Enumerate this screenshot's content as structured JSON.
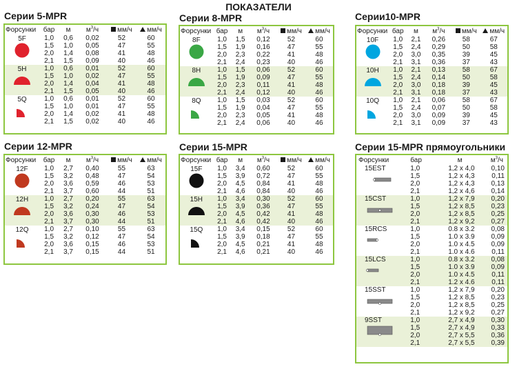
{
  "main_title": "ПОКАЗАТЕЛИ",
  "headers": {
    "nozzles": "Форсунки",
    "bar": "бар",
    "m": "м",
    "flow": "м",
    "flow_sup": "3",
    "flow_tail": "/ч",
    "mm_sq": "мм/ч",
    "mm_tri": "мм/ч"
  },
  "colors": {
    "border": "#8dc63f",
    "shade": "#eaf1d8"
  },
  "series": [
    {
      "id": "5mpr",
      "title": "Серии 5-MPR",
      "color": "#e0222d",
      "groups": [
        {
          "nozzle": "5F",
          "shape": "full",
          "rows": [
            [
              "1,0",
              "0,6",
              "0,02",
              "52",
              "60"
            ],
            [
              "1,5",
              "1,0",
              "0,05",
              "47",
              "55"
            ],
            [
              "2,0",
              "1,4",
              "0,08",
              "41",
              "48"
            ],
            [
              "2,1",
              "1,5",
              "0,09",
              "40",
              "46"
            ]
          ]
        },
        {
          "nozzle": "5H",
          "shape": "half",
          "rows": [
            [
              "1,0",
              "0,6",
              "0,01",
              "52",
              "60"
            ],
            [
              "1,5",
              "1,0",
              "0,02",
              "47",
              "55"
            ],
            [
              "2,0",
              "1,4",
              "0,04",
              "41",
              "48"
            ],
            [
              "2,1",
              "1,5",
              "0,05",
              "40",
              "46"
            ]
          ]
        },
        {
          "nozzle": "5Q",
          "shape": "quarter",
          "rows": [
            [
              "1,0",
              "0,6",
              "0,01",
              "52",
              "60"
            ],
            [
              "1,5",
              "1,0",
              "0,01",
              "47",
              "55"
            ],
            [
              "2,0",
              "1,4",
              "0,02",
              "41",
              "48"
            ],
            [
              "2,1",
              "1,5",
              "0,02",
              "40",
              "46"
            ]
          ]
        }
      ]
    },
    {
      "id": "8mpr",
      "title": "Серии 8-MPR",
      "color": "#3aa745",
      "groups": [
        {
          "nozzle": "8F",
          "shape": "full",
          "rows": [
            [
              "1,0",
              "1,5",
              "0,12",
              "52",
              "60"
            ],
            [
              "1,5",
              "1,9",
              "0,16",
              "47",
              "55"
            ],
            [
              "2,0",
              "2,3",
              "0,22",
              "41",
              "48"
            ],
            [
              "2,1",
              "2,4",
              "0,23",
              "40",
              "46"
            ]
          ]
        },
        {
          "nozzle": "8H",
          "shape": "half",
          "rows": [
            [
              "1,0",
              "1,5",
              "0,06",
              "52",
              "60"
            ],
            [
              "1,5",
              "1,9",
              "0,09",
              "47",
              "55"
            ],
            [
              "2,0",
              "2,3",
              "0,11",
              "41",
              "48"
            ],
            [
              "2,1",
              "2,4",
              "0,12",
              "40",
              "46"
            ]
          ]
        },
        {
          "nozzle": "8Q",
          "shape": "quarter",
          "rows": [
            [
              "1,0",
              "1,5",
              "0,03",
              "52",
              "60"
            ],
            [
              "1,5",
              "1,9",
              "0,04",
              "47",
              "55"
            ],
            [
              "2,0",
              "2,3",
              "0,05",
              "41",
              "48"
            ],
            [
              "2,1",
              "2,4",
              "0,06",
              "40",
              "46"
            ]
          ]
        }
      ]
    },
    {
      "id": "10mpr",
      "title": "Серии10-MPR",
      "color": "#00a6e0",
      "groups": [
        {
          "nozzle": "10F",
          "shape": "full",
          "rows": [
            [
              "1,0",
              "2,1",
              "0,26",
              "58",
              "67"
            ],
            [
              "1,5",
              "2,4",
              "0,29",
              "50",
              "58"
            ],
            [
              "2,0",
              "3,0",
              "0,35",
              "39",
              "45"
            ],
            [
              "2,1",
              "3,1",
              "0,36",
              "37",
              "43"
            ]
          ]
        },
        {
          "nozzle": "10H",
          "shape": "half",
          "rows": [
            [
              "1,0",
              "2,1",
              "0,13",
              "58",
              "67"
            ],
            [
              "1,5",
              "2,4",
              "0,14",
              "50",
              "58"
            ],
            [
              "2,0",
              "3,0",
              "0,18",
              "39",
              "45"
            ],
            [
              "2,1",
              "3,1",
              "0,18",
              "37",
              "43"
            ]
          ]
        },
        {
          "nozzle": "10Q",
          "shape": "quarter",
          "rows": [
            [
              "1,0",
              "2,1",
              "0,06",
              "58",
              "67"
            ],
            [
              "1,5",
              "2,4",
              "0,07",
              "50",
              "58"
            ],
            [
              "2,0",
              "3,0",
              "0,09",
              "39",
              "45"
            ],
            [
              "2,1",
              "3,1",
              "0,09",
              "37",
              "43"
            ]
          ]
        }
      ]
    },
    {
      "id": "12mpr",
      "title": "Серии 12-MPR",
      "color": "#c0391f",
      "groups": [
        {
          "nozzle": "12F",
          "shape": "full",
          "rows": [
            [
              "1,0",
              "2,7",
              "0,40",
              "55",
              "63"
            ],
            [
              "1,5",
              "3,2",
              "0,48",
              "47",
              "54"
            ],
            [
              "2,0",
              "3,6",
              "0,59",
              "46",
              "53"
            ],
            [
              "2,1",
              "3,7",
              "0,60",
              "44",
              "51"
            ]
          ]
        },
        {
          "nozzle": "12H",
          "shape": "half",
          "rows": [
            [
              "1,0",
              "2,7",
              "0,20",
              "55",
              "63"
            ],
            [
              "1,5",
              "3,2",
              "0,24",
              "47",
              "54"
            ],
            [
              "2,0",
              "3,6",
              "0,30",
              "46",
              "53"
            ],
            [
              "2,1",
              "3,7",
              "0,30",
              "44",
              "51"
            ]
          ]
        },
        {
          "nozzle": "12Q",
          "shape": "quarter",
          "rows": [
            [
              "1,0",
              "2,7",
              "0,10",
              "55",
              "63"
            ],
            [
              "1,5",
              "3,2",
              "0,12",
              "47",
              "54"
            ],
            [
              "2,0",
              "3,6",
              "0,15",
              "46",
              "53"
            ],
            [
              "2,1",
              "3,7",
              "0,15",
              "44",
              "51"
            ]
          ]
        }
      ]
    },
    {
      "id": "15mpr",
      "title": "Серии 15-MPR",
      "color": "#111111",
      "groups": [
        {
          "nozzle": "15F",
          "shape": "full",
          "rows": [
            [
              "1,0",
              "3,4",
              "0,60",
              "52",
              "60"
            ],
            [
              "1,5",
              "3,9",
              "0,72",
              "47",
              "55"
            ],
            [
              "2,0",
              "4,5",
              "0,84",
              "41",
              "48"
            ],
            [
              "2,1",
              "4,6",
              "0,84",
              "40",
              "46"
            ]
          ]
        },
        {
          "nozzle": "15H",
          "shape": "half",
          "rows": [
            [
              "1,0",
              "3,4",
              "0,30",
              "52",
              "60"
            ],
            [
              "1,5",
              "3,9",
              "0,36",
              "47",
              "55"
            ],
            [
              "2,0",
              "4,5",
              "0,42",
              "41",
              "48"
            ],
            [
              "2,1",
              "4,6",
              "0,42",
              "40",
              "46"
            ]
          ]
        },
        {
          "nozzle": "15Q",
          "shape": "quarter",
          "rows": [
            [
              "1,0",
              "3,4",
              "0,15",
              "52",
              "60"
            ],
            [
              "1,5",
              "3,9",
              "0,18",
              "47",
              "55"
            ],
            [
              "2,0",
              "4,5",
              "0,21",
              "41",
              "48"
            ],
            [
              "2,1",
              "4,6",
              "0,21",
              "40",
              "46"
            ]
          ]
        }
      ]
    }
  ],
  "rect": {
    "title": "Серии 15-MPR прямоугольники",
    "headers": {
      "nozzles": "Форсунки",
      "bar": "бар",
      "size": "м",
      "flow": "м",
      "flow_sup": "3",
      "flow_tail": "/ч"
    },
    "groups": [
      {
        "nozzle": "15EST",
        "shape": "end",
        "rows": [
          [
            "1,0",
            "1,2 x 4,0",
            "0,10"
          ],
          [
            "1,5",
            "1,2 x 4,3",
            "0,11"
          ],
          [
            "2,0",
            "1,2 x 4,3",
            "0,13"
          ],
          [
            "2,1",
            "1,2 x 4,6",
            "0,14"
          ]
        ]
      },
      {
        "nozzle": "15CST",
        "shape": "center",
        "rows": [
          [
            "1,0",
            "1,2 x 7,9",
            "0,20"
          ],
          [
            "1,5",
            "1,2 x 8,5",
            "0,23"
          ],
          [
            "2,0",
            "1,2 x 8,5",
            "0,25"
          ],
          [
            "2,1",
            "1,2 x 9,2",
            "0,27"
          ]
        ]
      },
      {
        "nozzle": "15RCS",
        "shape": "right",
        "rows": [
          [
            "1,0",
            "0.8 x 3.2",
            "0,08"
          ],
          [
            "1,5",
            "1.0 x 3.9",
            "0,09"
          ],
          [
            "2,0",
            "1.0 x 4.5",
            "0,09"
          ],
          [
            "2,1",
            "1.0 x 4.6",
            "0,11"
          ]
        ]
      },
      {
        "nozzle": "15LCS",
        "shape": "left",
        "rows": [
          [
            "1,0",
            "0.8 x 3.2",
            "0,08"
          ],
          [
            "1,5",
            "1.0 x 3.9",
            "0,09"
          ],
          [
            "2,0",
            "1.0 x 4.5",
            "0,11"
          ],
          [
            "2,1",
            "1.2 x 4.6",
            "0,11"
          ]
        ]
      },
      {
        "nozzle": "15SST",
        "shape": "side",
        "rows": [
          [
            "1,0",
            "1,2 x 7,9",
            "0,20"
          ],
          [
            "1,5",
            "1,2 x 8,5",
            "0,23"
          ],
          [
            "2,0",
            "1,2 x 8,5",
            "0,25"
          ],
          [
            "2,1",
            "1,2 x 9,2",
            "0,27"
          ]
        ]
      },
      {
        "nozzle": "9SST",
        "shape": "side-wide",
        "rows": [
          [
            "1,0",
            "2,7 x 4,9",
            "0,30"
          ],
          [
            "1,5",
            "2,7 x 4,9",
            "0,33"
          ],
          [
            "2,0",
            "2,7 x 5,5",
            "0,36"
          ],
          [
            "2,1",
            "2,7 x 5,5",
            "0,39"
          ]
        ]
      }
    ]
  }
}
